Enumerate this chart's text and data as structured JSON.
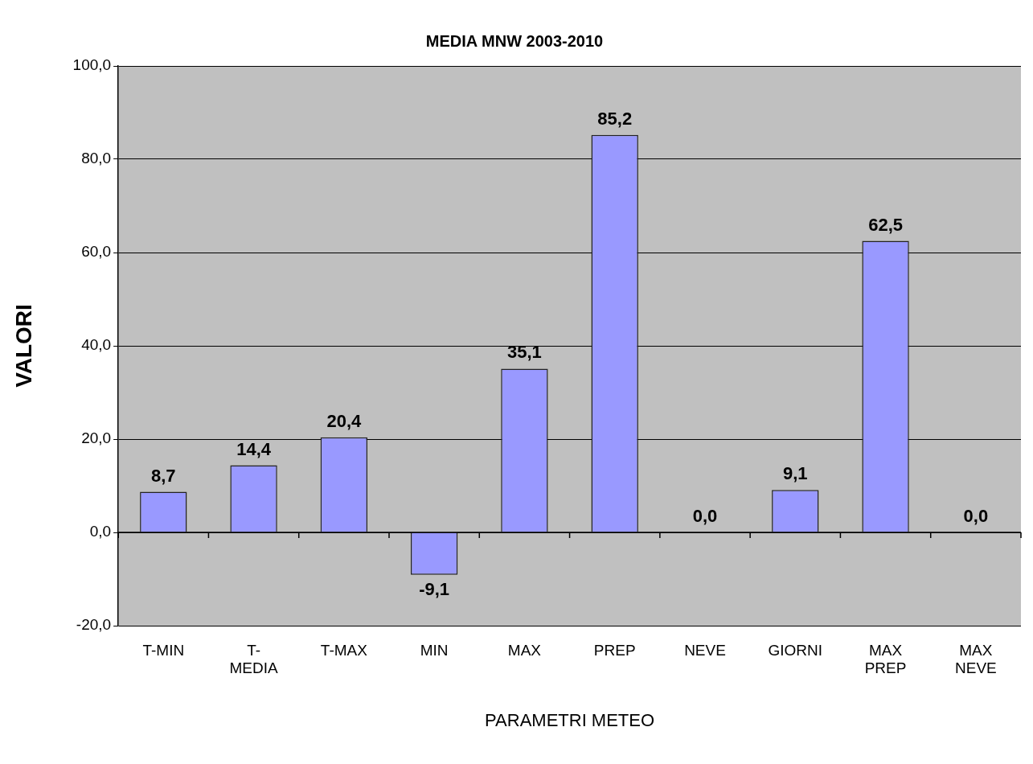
{
  "chart_data": {
    "type": "bar",
    "title": "MEDIA MNW 2003-2010",
    "xlabel": "PARAMETRI METEO",
    "ylabel": "VALORI",
    "categories": [
      "T-MIN",
      "T- MEDIA",
      "T-MAX",
      "MIN",
      "MAX",
      "PREP",
      "NEVE",
      "GIORNI",
      "MAX PREP",
      "MAX NEVE"
    ],
    "values": [
      8.7,
      14.4,
      20.4,
      -9.1,
      35.1,
      85.2,
      0.0,
      9.1,
      62.5,
      0.0
    ],
    "value_labels": [
      "8,7",
      "14,4",
      "20,4",
      "-9,1",
      "35,1",
      "85,2",
      "0,0",
      "9,1",
      "62,5",
      "0,0"
    ],
    "color": "#9999ff",
    "ylim": [
      -20,
      100
    ],
    "yticks": [
      {
        "value": -20,
        "label": "-20,0"
      },
      {
        "value": 0,
        "label": "0,0"
      },
      {
        "value": 20,
        "label": "20,0"
      },
      {
        "value": 40,
        "label": "40,0"
      },
      {
        "value": 60,
        "label": "60,0"
      },
      {
        "value": 80,
        "label": "80,0"
      },
      {
        "value": 100,
        "label": "100,0"
      }
    ],
    "grid": "y",
    "legend": false
  }
}
